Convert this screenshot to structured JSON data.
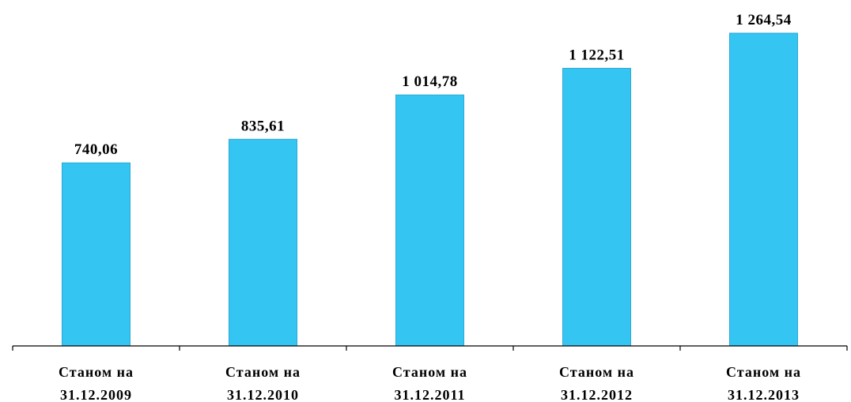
{
  "chart_data": {
    "type": "bar",
    "categories": [
      [
        "Станом на",
        "31.12.2009"
      ],
      [
        "Станом на",
        "31.12.2010"
      ],
      [
        "Станом на",
        "31.12.2011"
      ],
      [
        "Станом на",
        "31.12.2012"
      ],
      [
        "Станом на",
        "31.12.2013"
      ]
    ],
    "values": [
      740.06,
      835.61,
      1014.78,
      1122.51,
      1264.54
    ],
    "value_labels": [
      "740,06",
      "835,61",
      "1 014,78",
      "1 122,51",
      "1 264,54"
    ],
    "title": "",
    "xlabel": "",
    "ylabel": "",
    "ylim": [
      0,
      1264.54
    ],
    "grid": false,
    "legend": "none",
    "colors": {
      "bar": "#35c5f2",
      "bar_edge": "#2aa9d4",
      "axis": "#000000"
    }
  }
}
